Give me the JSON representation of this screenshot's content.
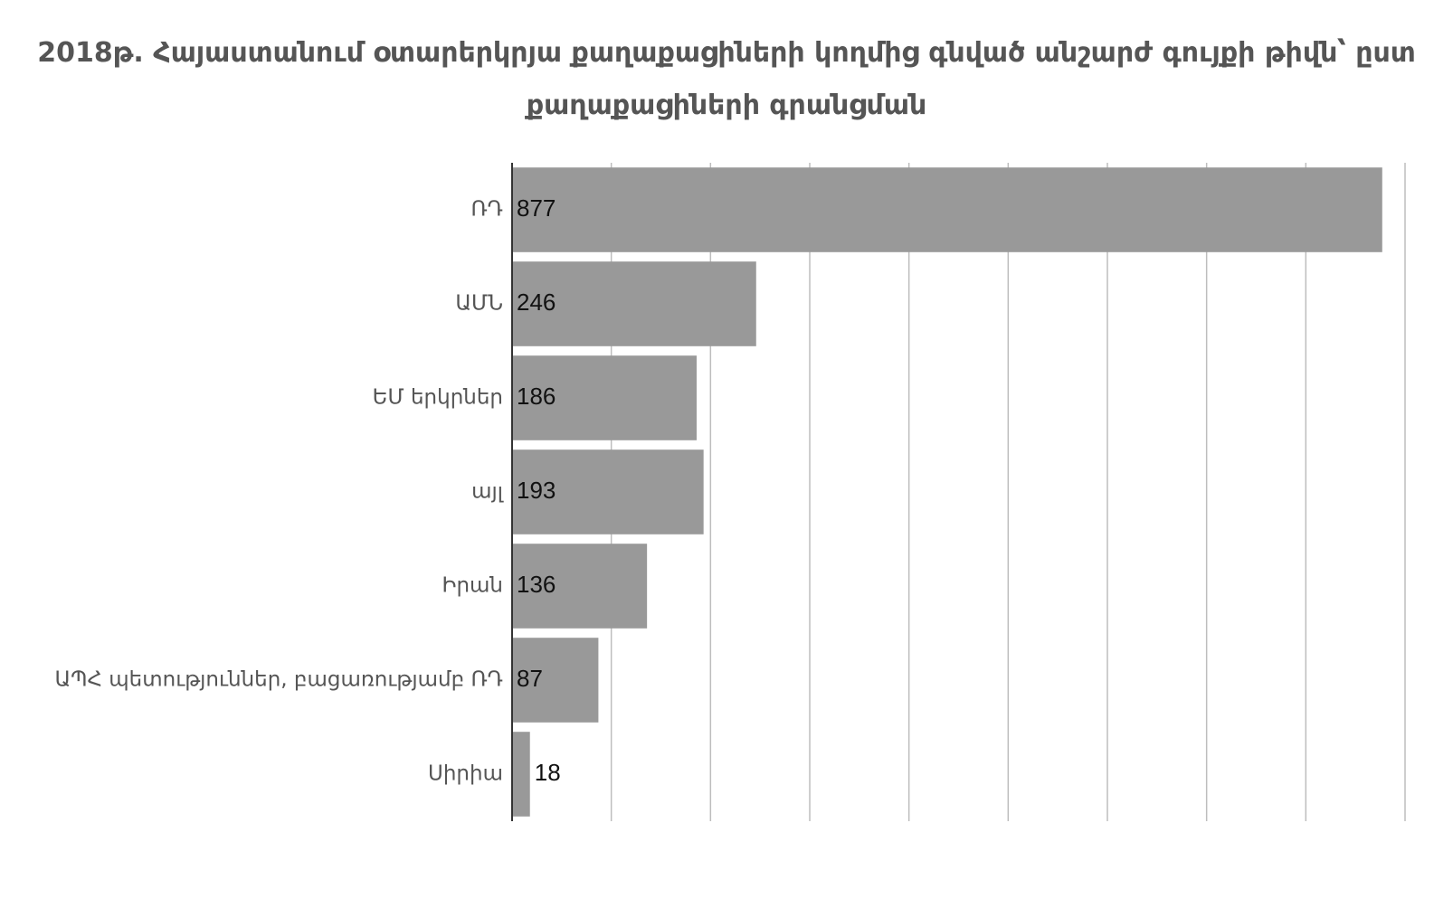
{
  "chart_data": {
    "type": "bar",
    "orientation": "horizontal",
    "title": "2018թ. Հայաստանում օտարերկրյա քաղաքացիների կողմից գնված անշարժ գույքի թիվն՝ ըստ քաղաքացիների գրանցման",
    "xlabel": "",
    "ylabel": "",
    "categories": [
      "ՌԴ",
      "ԱՄՆ",
      "ԵՄ երկրներ",
      "այլ",
      "Իրան",
      "ԱՊՀ պետություններ, բացառությամբ ՌԴ",
      "Սիրիա"
    ],
    "values": [
      877,
      246,
      186,
      193,
      136,
      87,
      18
    ],
    "xlim": [
      0,
      900
    ],
    "x_grid_step": 100,
    "grid": true,
    "legend": "none",
    "bar_color": "#999999",
    "grid_color": "#bdbdbd",
    "axis_color": "#333333"
  }
}
